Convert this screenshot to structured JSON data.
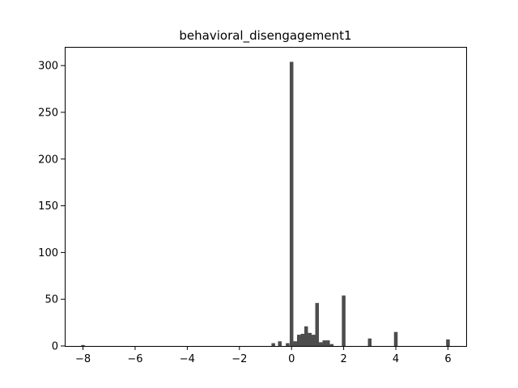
{
  "chart_data": {
    "type": "bar",
    "title": "behavioral_disengagement1",
    "xlabel": "",
    "ylabel": "",
    "xlim": [
      -8.7,
      6.7
    ],
    "ylim": [
      0,
      320
    ],
    "grid": false,
    "bar_color": "#4d4d4d",
    "bin_width": 0.14,
    "xticks": [
      -8,
      -6,
      -4,
      -2,
      0,
      2,
      4,
      6
    ],
    "xtick_labels": [
      "−8",
      "−6",
      "−4",
      "−2",
      "0",
      "2",
      "4",
      "6"
    ],
    "yticks": [
      0,
      50,
      100,
      150,
      200,
      250,
      300
    ],
    "ytick_labels": [
      "0",
      "50",
      "100",
      "150",
      "200",
      "250",
      "300"
    ],
    "bars": [
      {
        "x": -8.0,
        "y": 1
      },
      {
        "x": -0.7,
        "y": 3
      },
      {
        "x": -0.45,
        "y": 5
      },
      {
        "x": -0.15,
        "y": 3
      },
      {
        "x": 0.0,
        "y": 304
      },
      {
        "x": 0.14,
        "y": 5
      },
      {
        "x": 0.28,
        "y": 12
      },
      {
        "x": 0.42,
        "y": 13
      },
      {
        "x": 0.56,
        "y": 21
      },
      {
        "x": 0.7,
        "y": 14
      },
      {
        "x": 0.84,
        "y": 12
      },
      {
        "x": 0.98,
        "y": 46
      },
      {
        "x": 1.12,
        "y": 4
      },
      {
        "x": 1.26,
        "y": 6
      },
      {
        "x": 1.4,
        "y": 6
      },
      {
        "x": 1.54,
        "y": 2
      },
      {
        "x": 2.0,
        "y": 54
      },
      {
        "x": 3.0,
        "y": 8
      },
      {
        "x": 4.0,
        "y": 15
      },
      {
        "x": 6.0,
        "y": 7
      }
    ]
  }
}
